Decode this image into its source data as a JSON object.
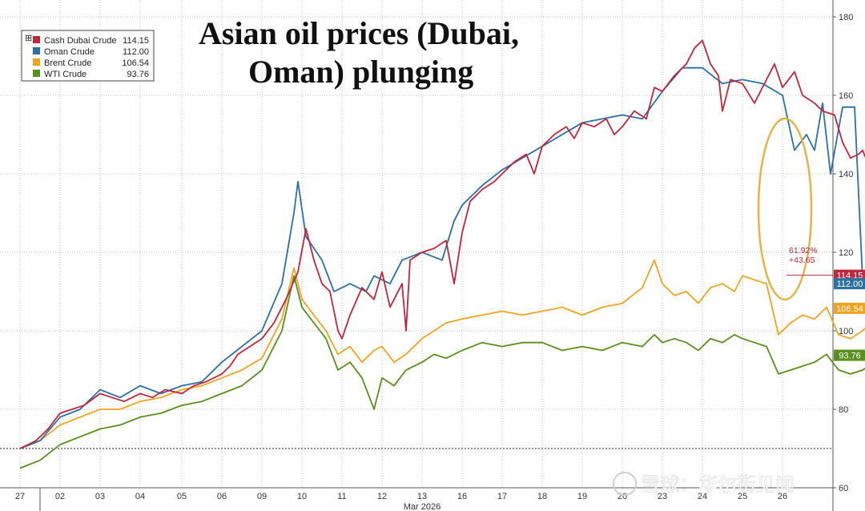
{
  "chart_data": {
    "type": "line",
    "title": "Asian oil prices (Dubai, Oman) plunging",
    "title_lines": [
      "Asian oil prices (Dubai,",
      "Oman) plunging"
    ],
    "xlabel": "Mar 2026",
    "ylabel": "",
    "ylim": [
      60,
      185
    ],
    "yticks": [
      60,
      80,
      100,
      120,
      140,
      160,
      180
    ],
    "xticks": [
      "27",
      "02",
      "03",
      "04",
      "05",
      "06",
      "09",
      "10",
      "11",
      "12",
      "13",
      "16",
      "17",
      "18",
      "19",
      "20",
      "23",
      "24",
      "25",
      "26"
    ],
    "grid": true,
    "legend_position": "top-left",
    "series": [
      {
        "name": "Cash Dubai Crude",
        "last": "114.15",
        "color": "#c0273d",
        "points": [
          [
            0,
            70
          ],
          [
            0.4,
            72
          ],
          [
            0.7,
            75
          ],
          [
            1,
            79
          ],
          [
            1.3,
            80
          ],
          [
            1.6,
            81
          ],
          [
            2,
            84
          ],
          [
            2.3,
            83
          ],
          [
            2.6,
            82
          ],
          [
            3,
            84
          ],
          [
            3.3,
            83
          ],
          [
            3.6,
            85
          ],
          [
            4,
            84
          ],
          [
            4.3,
            86
          ],
          [
            4.6,
            87
          ],
          [
            5,
            89
          ],
          [
            5.2,
            91
          ],
          [
            5.4,
            94
          ],
          [
            5.7,
            96
          ],
          [
            6,
            98
          ],
          [
            6.3,
            102
          ],
          [
            6.6,
            108
          ],
          [
            6.9,
            115
          ],
          [
            7.1,
            126
          ],
          [
            7.3,
            118
          ],
          [
            7.5,
            112
          ],
          [
            7.7,
            110
          ],
          [
            7.9,
            100
          ],
          [
            8,
            98
          ],
          [
            8.2,
            104
          ],
          [
            8.5,
            111
          ],
          [
            8.8,
            108
          ],
          [
            9,
            115
          ],
          [
            9.2,
            106
          ],
          [
            9.5,
            112
          ],
          [
            9.6,
            100
          ],
          [
            9.7,
            118
          ],
          [
            10,
            120
          ],
          [
            10.3,
            121
          ],
          [
            10.6,
            123
          ],
          [
            10.8,
            112
          ],
          [
            11,
            125
          ],
          [
            11.2,
            133
          ],
          [
            11.5,
            136
          ],
          [
            11.8,
            138
          ],
          [
            12,
            140
          ],
          [
            12.3,
            143
          ],
          [
            12.6,
            145
          ],
          [
            12.8,
            140
          ],
          [
            13,
            147
          ],
          [
            13.3,
            150
          ],
          [
            13.6,
            152
          ],
          [
            13.8,
            149
          ],
          [
            14,
            153
          ],
          [
            14.3,
            152
          ],
          [
            14.6,
            154
          ],
          [
            14.8,
            150
          ],
          [
            15,
            152
          ],
          [
            15.3,
            156
          ],
          [
            15.6,
            154
          ],
          [
            15.8,
            162
          ],
          [
            16,
            161
          ],
          [
            16.3,
            165
          ],
          [
            16.6,
            168
          ],
          [
            16.8,
            172
          ],
          [
            17,
            174
          ],
          [
            17.2,
            168
          ],
          [
            17.4,
            165
          ],
          [
            17.5,
            156
          ],
          [
            17.7,
            164
          ],
          [
            18,
            163
          ],
          [
            18.3,
            158
          ],
          [
            18.6,
            164
          ],
          [
            18.8,
            168
          ],
          [
            19,
            162
          ],
          [
            19.3,
            166
          ],
          [
            19.5,
            160
          ],
          [
            19.8,
            158
          ],
          [
            20,
            156
          ],
          [
            20.3,
            155
          ],
          [
            20.5,
            148
          ],
          [
            20.7,
            144
          ],
          [
            20.9,
            145
          ],
          [
            21,
            146
          ],
          [
            21.2,
            141
          ],
          [
            21.4,
            143
          ],
          [
            21.6,
            144
          ],
          [
            21.7,
            137
          ],
          [
            21.8,
            129
          ],
          [
            21.9,
            114.15
          ]
        ]
      },
      {
        "name": "Oman Crude",
        "last": "112.00",
        "color": "#2d6fa3",
        "points": [
          [
            0,
            70
          ],
          [
            0.5,
            72
          ],
          [
            1,
            78
          ],
          [
            1.5,
            80
          ],
          [
            2,
            85
          ],
          [
            2.5,
            83
          ],
          [
            3,
            86
          ],
          [
            3.5,
            84
          ],
          [
            4,
            86
          ],
          [
            4.5,
            87
          ],
          [
            5,
            92
          ],
          [
            5.5,
            96
          ],
          [
            6,
            100
          ],
          [
            6.5,
            112
          ],
          [
            6.8,
            130
          ],
          [
            6.9,
            138
          ],
          [
            7.1,
            124
          ],
          [
            7.5,
            118
          ],
          [
            7.8,
            110
          ],
          [
            8.2,
            112
          ],
          [
            8.6,
            110
          ],
          [
            8.8,
            114
          ],
          [
            9.2,
            112
          ],
          [
            9.5,
            118
          ],
          [
            10,
            120
          ],
          [
            10.5,
            118
          ],
          [
            10.8,
            128
          ],
          [
            11,
            132
          ],
          [
            11.5,
            137
          ],
          [
            12,
            141
          ],
          [
            12.5,
            144
          ],
          [
            13,
            147
          ],
          [
            13.5,
            150
          ],
          [
            14,
            153
          ],
          [
            14.5,
            154
          ],
          [
            15,
            155
          ],
          [
            15.5,
            154
          ],
          [
            16,
            161
          ],
          [
            16.5,
            167
          ],
          [
            17,
            167
          ],
          [
            17.5,
            163
          ],
          [
            18,
            164
          ],
          [
            18.5,
            163
          ],
          [
            19,
            160
          ],
          [
            19.3,
            146
          ],
          [
            19.6,
            150
          ],
          [
            19.8,
            146
          ],
          [
            20,
            158
          ],
          [
            20.2,
            140
          ],
          [
            20.5,
            157
          ],
          [
            20.8,
            157
          ],
          [
            21,
            113
          ],
          [
            21.2,
            113
          ],
          [
            21.4,
            130
          ],
          [
            21.7,
            130
          ],
          [
            21.8,
            112
          ],
          [
            21.95,
            112
          ]
        ]
      },
      {
        "name": "Brent Crude",
        "last": "106.54",
        "color": "#f0a422",
        "points": [
          [
            0,
            70
          ],
          [
            0.5,
            72
          ],
          [
            1,
            76
          ],
          [
            1.5,
            78
          ],
          [
            2,
            80
          ],
          [
            2.5,
            80
          ],
          [
            3,
            82
          ],
          [
            3.5,
            83
          ],
          [
            4,
            85
          ],
          [
            4.5,
            86
          ],
          [
            5,
            88
          ],
          [
            5.5,
            90
          ],
          [
            6,
            93
          ],
          [
            6.5,
            103
          ],
          [
            6.8,
            116
          ],
          [
            7,
            108
          ],
          [
            7.3,
            104
          ],
          [
            7.6,
            100
          ],
          [
            7.9,
            94
          ],
          [
            8.2,
            96
          ],
          [
            8.5,
            92
          ],
          [
            8.8,
            95
          ],
          [
            9,
            96
          ],
          [
            9.3,
            92
          ],
          [
            9.6,
            94
          ],
          [
            10,
            98
          ],
          [
            10.3,
            100
          ],
          [
            10.6,
            102
          ],
          [
            11,
            103
          ],
          [
            11.5,
            104
          ],
          [
            12,
            105
          ],
          [
            12.5,
            104
          ],
          [
            13,
            105
          ],
          [
            13.5,
            106
          ],
          [
            14,
            104
          ],
          [
            14.5,
            106
          ],
          [
            15,
            107
          ],
          [
            15.5,
            111
          ],
          [
            15.8,
            118
          ],
          [
            16,
            112
          ],
          [
            16.3,
            109
          ],
          [
            16.6,
            110
          ],
          [
            16.9,
            107
          ],
          [
            17.2,
            111
          ],
          [
            17.5,
            112
          ],
          [
            17.8,
            110
          ],
          [
            18,
            114
          ],
          [
            18.3,
            113
          ],
          [
            18.6,
            112
          ],
          [
            18.9,
            99
          ],
          [
            19.2,
            102
          ],
          [
            19.5,
            104
          ],
          [
            19.8,
            103
          ],
          [
            20.1,
            106
          ],
          [
            20.4,
            99
          ],
          [
            20.7,
            98
          ],
          [
            21,
            100
          ],
          [
            21.3,
            103
          ],
          [
            21.6,
            104
          ],
          [
            21.9,
            106.54
          ]
        ]
      },
      {
        "name": "WTI Crude",
        "last": "93.76",
        "color": "#5a8f1e",
        "points": [
          [
            0,
            65
          ],
          [
            0.5,
            67
          ],
          [
            1,
            71
          ],
          [
            1.5,
            73
          ],
          [
            2,
            75
          ],
          [
            2.5,
            76
          ],
          [
            3,
            78
          ],
          [
            3.5,
            79
          ],
          [
            4,
            81
          ],
          [
            4.5,
            82
          ],
          [
            5,
            84
          ],
          [
            5.5,
            86
          ],
          [
            6,
            90
          ],
          [
            6.5,
            100
          ],
          [
            6.8,
            114
          ],
          [
            7,
            106
          ],
          [
            7.3,
            102
          ],
          [
            7.6,
            98
          ],
          [
            7.9,
            90
          ],
          [
            8.2,
            92
          ],
          [
            8.5,
            88
          ],
          [
            8.8,
            80
          ],
          [
            9,
            88
          ],
          [
            9.3,
            86
          ],
          [
            9.6,
            90
          ],
          [
            10,
            92
          ],
          [
            10.3,
            94
          ],
          [
            10.6,
            93
          ],
          [
            11,
            95
          ],
          [
            11.5,
            97
          ],
          [
            12,
            96
          ],
          [
            12.5,
            97
          ],
          [
            13,
            97
          ],
          [
            13.5,
            95
          ],
          [
            14,
            96
          ],
          [
            14.5,
            95
          ],
          [
            15,
            97
          ],
          [
            15.5,
            96
          ],
          [
            15.8,
            99
          ],
          [
            16,
            97
          ],
          [
            16.3,
            98
          ],
          [
            16.6,
            97
          ],
          [
            16.9,
            95
          ],
          [
            17.2,
            98
          ],
          [
            17.5,
            97
          ],
          [
            17.8,
            99
          ],
          [
            18,
            98
          ],
          [
            18.3,
            97
          ],
          [
            18.6,
            96
          ],
          [
            18.9,
            89
          ],
          [
            19.2,
            90
          ],
          [
            19.5,
            91
          ],
          [
            19.8,
            92
          ],
          [
            20.1,
            94
          ],
          [
            20.4,
            90
          ],
          [
            20.7,
            89
          ],
          [
            21,
            90
          ],
          [
            21.3,
            92
          ],
          [
            21.6,
            92
          ],
          [
            21.9,
            93.76
          ]
        ]
      }
    ],
    "annotations": [
      "61.92%",
      "+43.65"
    ],
    "reference_line": 70
  },
  "watermark": "雪球：华尔街见闻"
}
